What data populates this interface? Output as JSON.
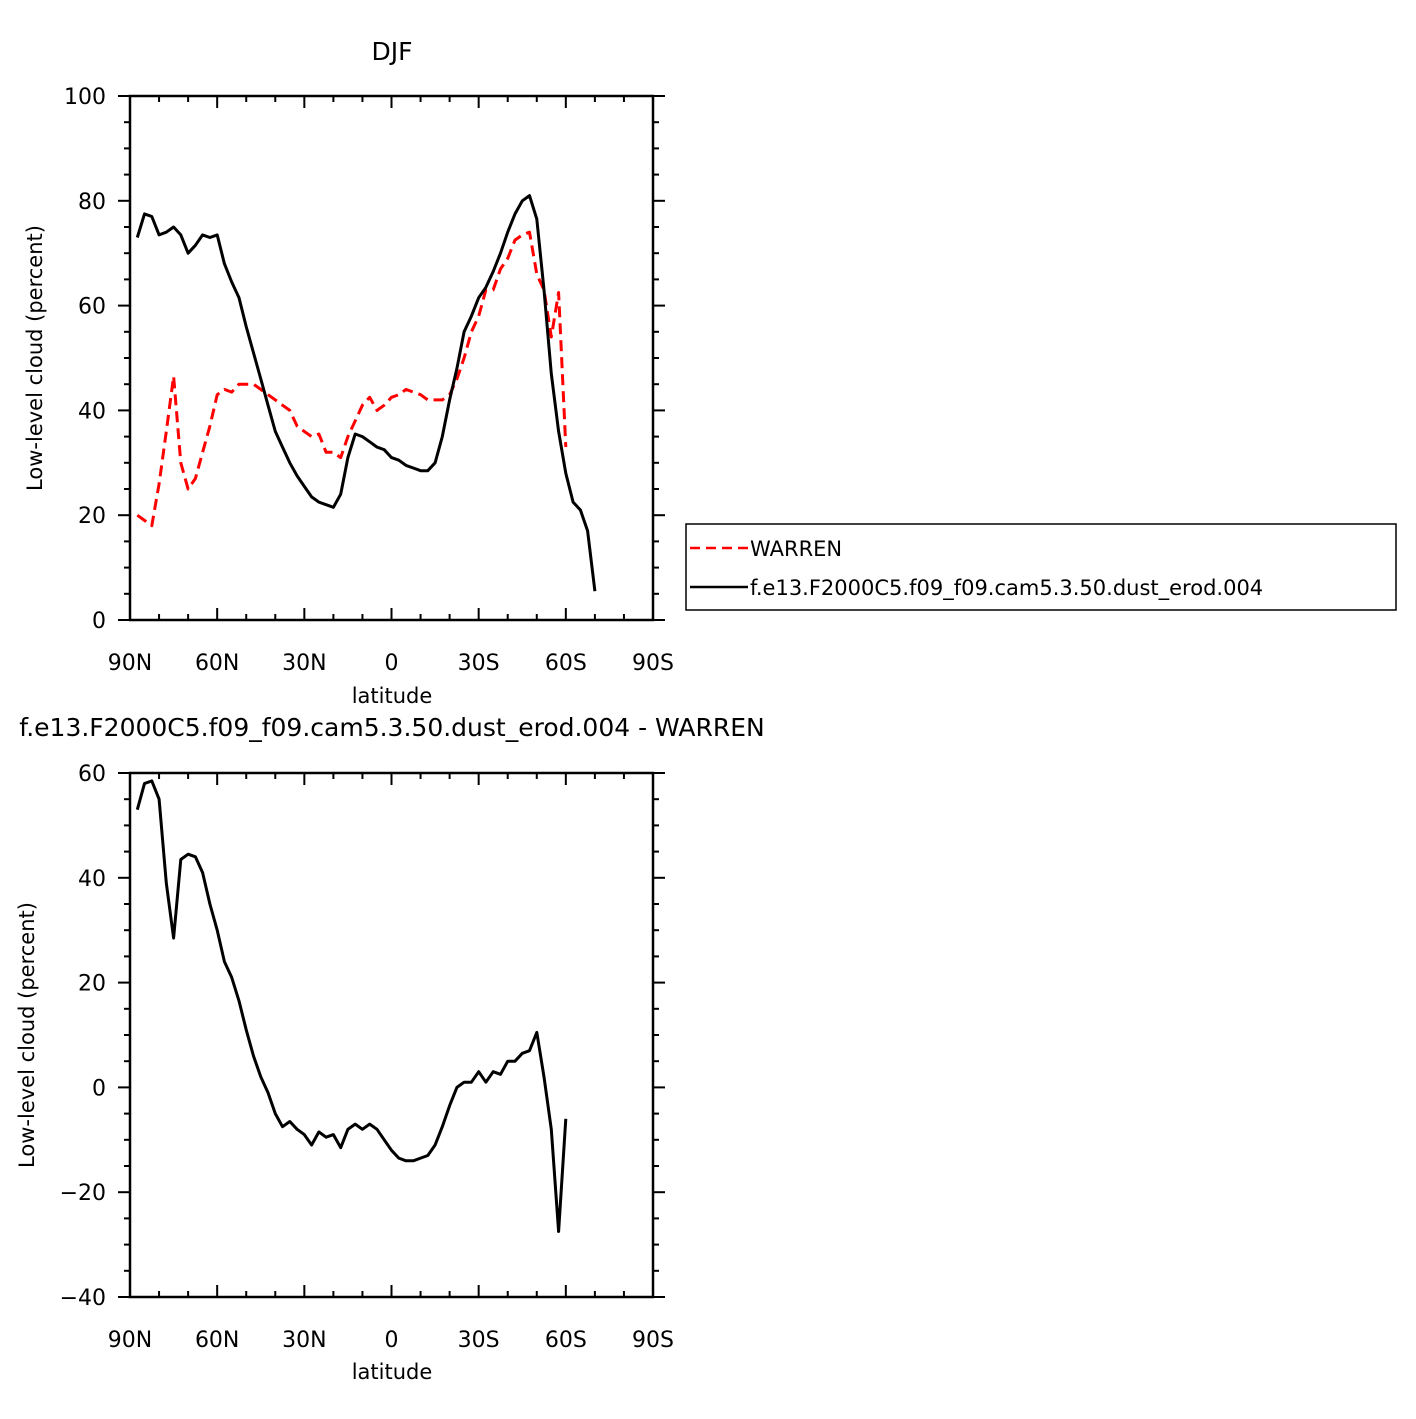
{
  "chart_data": [
    {
      "type": "line",
      "title": "DJF",
      "xlabel": "latitude",
      "ylabel": "Low-level cloud (percent)",
      "xlim": [
        90,
        -90
      ],
      "ylim": [
        0,
        100
      ],
      "x_ticks": [
        {
          "value": 90,
          "label": "90N"
        },
        {
          "value": 60,
          "label": "60N"
        },
        {
          "value": 30,
          "label": "30N"
        },
        {
          "value": 0,
          "label": "0"
        },
        {
          "value": -30,
          "label": "30S"
        },
        {
          "value": -60,
          "label": "60S"
        },
        {
          "value": -90,
          "label": "90S"
        }
      ],
      "y_ticks": [
        {
          "value": 0,
          "label": "0"
        },
        {
          "value": 20,
          "label": "20"
        },
        {
          "value": 40,
          "label": "40"
        },
        {
          "value": 60,
          "label": "60"
        },
        {
          "value": 80,
          "label": "80"
        },
        {
          "value": 100,
          "label": "100"
        }
      ],
      "legend": {
        "position": "right"
      },
      "series": [
        {
          "name": "WARREN",
          "color": "#ff0000",
          "dash": "dashed",
          "points": [
            [
              87.5,
              20.0
            ],
            [
              82.5,
              18.0
            ],
            [
              80.0,
              26.0
            ],
            [
              77.5,
              36.0
            ],
            [
              75.0,
              46.5
            ],
            [
              72.5,
              30.0
            ],
            [
              70.0,
              25.0
            ],
            [
              67.5,
              27.0
            ],
            [
              65.0,
              32.0
            ],
            [
              62.5,
              37.0
            ],
            [
              60.0,
              43.0
            ],
            [
              57.5,
              44.0
            ],
            [
              55.0,
              43.5
            ],
            [
              52.5,
              45.0
            ],
            [
              50.0,
              45.0
            ],
            [
              47.5,
              45.0
            ],
            [
              45.0,
              44.0
            ],
            [
              42.5,
              43.0
            ],
            [
              40.0,
              42.0
            ],
            [
              37.5,
              41.0
            ],
            [
              35.0,
              40.0
            ],
            [
              32.5,
              37.0
            ],
            [
              30.0,
              36.0
            ],
            [
              27.5,
              35.0
            ],
            [
              25.0,
              35.5
            ],
            [
              22.5,
              32.0
            ],
            [
              20.0,
              32.0
            ],
            [
              17.5,
              31.0
            ],
            [
              15.0,
              35.0
            ],
            [
              12.5,
              38.0
            ],
            [
              10.0,
              41.0
            ],
            [
              7.5,
              42.5
            ],
            [
              5.0,
              40.0
            ],
            [
              2.5,
              41.0
            ],
            [
              0.0,
              42.5
            ],
            [
              -2.5,
              43.0
            ],
            [
              -5.0,
              44.0
            ],
            [
              -7.5,
              43.5
            ],
            [
              -10.0,
              43.0
            ],
            [
              -12.5,
              42.0
            ],
            [
              -15.0,
              42.0
            ],
            [
              -17.5,
              42.0
            ],
            [
              -20.0,
              43.0
            ],
            [
              -22.5,
              46.0
            ],
            [
              -25.0,
              50.0
            ],
            [
              -27.5,
              55.0
            ],
            [
              -30.0,
              58.0
            ],
            [
              -32.5,
              63.0
            ],
            [
              -35.0,
              63.0
            ],
            [
              -37.5,
              67.0
            ],
            [
              -40.0,
              69.0
            ],
            [
              -42.5,
              72.5
            ],
            [
              -45.0,
              73.5
            ],
            [
              -47.5,
              74.0
            ],
            [
              -50.0,
              66.0
            ],
            [
              -52.5,
              63.0
            ],
            [
              -55.0,
              54.0
            ],
            [
              -57.5,
              62.5
            ],
            [
              -60.0,
              33.0
            ]
          ]
        },
        {
          "name": "f.e13.F2000C5.f09_f09.cam5.3.50.dust_erod.004",
          "color": "#000000",
          "dash": "solid",
          "points": [
            [
              87.5,
              73.0
            ],
            [
              85.0,
              77.5
            ],
            [
              82.5,
              77.0
            ],
            [
              80.0,
              73.5
            ],
            [
              77.5,
              74.0
            ],
            [
              75.0,
              75.0
            ],
            [
              72.5,
              73.5
            ],
            [
              70.0,
              70.0
            ],
            [
              67.5,
              71.5
            ],
            [
              65.0,
              73.5
            ],
            [
              62.5,
              73.0
            ],
            [
              60.0,
              73.5
            ],
            [
              57.5,
              68.0
            ],
            [
              55.0,
              64.5
            ],
            [
              52.5,
              61.5
            ],
            [
              50.0,
              56.0
            ],
            [
              47.5,
              51.0
            ],
            [
              45.0,
              46.0
            ],
            [
              42.5,
              41.0
            ],
            [
              40.0,
              36.0
            ],
            [
              37.5,
              33.0
            ],
            [
              35.0,
              30.0
            ],
            [
              32.5,
              27.5
            ],
            [
              30.0,
              25.5
            ],
            [
              27.5,
              23.5
            ],
            [
              25.0,
              22.5
            ],
            [
              22.5,
              22.0
            ],
            [
              20.0,
              21.5
            ],
            [
              17.5,
              24.0
            ],
            [
              15.0,
              31.0
            ],
            [
              12.5,
              35.5
            ],
            [
              10.0,
              35.0
            ],
            [
              7.5,
              34.0
            ],
            [
              5.0,
              33.0
            ],
            [
              2.5,
              32.5
            ],
            [
              0.0,
              31.0
            ],
            [
              -2.5,
              30.5
            ],
            [
              -5.0,
              29.5
            ],
            [
              -7.5,
              29.0
            ],
            [
              -10.0,
              28.5
            ],
            [
              -12.5,
              28.5
            ],
            [
              -15.0,
              30.0
            ],
            [
              -17.5,
              35.0
            ],
            [
              -20.0,
              42.0
            ],
            [
              -22.5,
              48.0
            ],
            [
              -25.0,
              55.0
            ],
            [
              -27.5,
              58.0
            ],
            [
              -30.0,
              61.5
            ],
            [
              -32.5,
              63.5
            ],
            [
              -35.0,
              66.5
            ],
            [
              -37.5,
              70.0
            ],
            [
              -40.0,
              74.0
            ],
            [
              -42.5,
              77.5
            ],
            [
              -45.0,
              80.0
            ],
            [
              -47.5,
              81.0
            ],
            [
              -50.0,
              76.5
            ],
            [
              -52.5,
              63.0
            ],
            [
              -55.0,
              47.0
            ],
            [
              -57.5,
              36.0
            ],
            [
              -60.0,
              28.0
            ],
            [
              -62.5,
              22.5
            ],
            [
              -65.0,
              21.0
            ],
            [
              -67.5,
              17.0
            ],
            [
              -70.0,
              5.5
            ]
          ]
        }
      ]
    },
    {
      "type": "line",
      "title": "f.e13.F2000C5.f09_f09.cam5.3.50.dust_erod.004 - WARREN",
      "xlabel": "latitude",
      "ylabel": "Low-level cloud (percent)",
      "xlim": [
        90,
        -90
      ],
      "ylim": [
        -40,
        60
      ],
      "x_ticks": [
        {
          "value": 90,
          "label": "90N"
        },
        {
          "value": 60,
          "label": "60N"
        },
        {
          "value": 30,
          "label": "30N"
        },
        {
          "value": 0,
          "label": "0"
        },
        {
          "value": -30,
          "label": "30S"
        },
        {
          "value": -60,
          "label": "60S"
        },
        {
          "value": -90,
          "label": "90S"
        }
      ],
      "y_ticks": [
        {
          "value": -40,
          "label": "−40"
        },
        {
          "value": -20,
          "label": "−20"
        },
        {
          "value": 0,
          "label": "0"
        },
        {
          "value": 20,
          "label": "20"
        },
        {
          "value": 40,
          "label": "40"
        },
        {
          "value": 60,
          "label": "60"
        }
      ],
      "series": [
        {
          "color": "#000000",
          "dash": "solid",
          "points": [
            [
              87.5,
              53.0
            ],
            [
              85.0,
              58.0
            ],
            [
              82.5,
              58.5
            ],
            [
              80.0,
              55.0
            ],
            [
              77.5,
              39.0
            ],
            [
              75.0,
              28.5
            ],
            [
              72.5,
              43.5
            ],
            [
              70.0,
              44.5
            ],
            [
              67.5,
              44.0
            ],
            [
              65.0,
              41.0
            ],
            [
              62.5,
              35.0
            ],
            [
              60.0,
              30.0
            ],
            [
              57.5,
              24.0
            ],
            [
              55.0,
              21.0
            ],
            [
              52.5,
              16.5
            ],
            [
              50.0,
              11.0
            ],
            [
              47.5,
              6.0
            ],
            [
              45.0,
              2.0
            ],
            [
              42.5,
              -1.0
            ],
            [
              40.0,
              -5.0
            ],
            [
              37.5,
              -7.5
            ],
            [
              35.0,
              -6.5
            ],
            [
              32.5,
              -8.0
            ],
            [
              30.0,
              -9.0
            ],
            [
              27.5,
              -11.0
            ],
            [
              25.0,
              -8.5
            ],
            [
              22.5,
              -9.5
            ],
            [
              20.0,
              -9.0
            ],
            [
              17.5,
              -11.5
            ],
            [
              15.0,
              -8.0
            ],
            [
              12.5,
              -7.0
            ],
            [
              10.0,
              -8.0
            ],
            [
              7.5,
              -7.0
            ],
            [
              5.0,
              -8.0
            ],
            [
              2.5,
              -10.0
            ],
            [
              0.0,
              -12.0
            ],
            [
              -2.5,
              -13.5
            ],
            [
              -5.0,
              -14.0
            ],
            [
              -7.5,
              -14.0
            ],
            [
              -10.0,
              -13.5
            ],
            [
              -12.5,
              -13.0
            ],
            [
              -15.0,
              -11.0
            ],
            [
              -17.5,
              -7.5
            ],
            [
              -20.0,
              -3.5
            ],
            [
              -22.5,
              0.0
            ],
            [
              -25.0,
              1.0
            ],
            [
              -27.5,
              1.0
            ],
            [
              -30.0,
              3.0
            ],
            [
              -32.5,
              1.0
            ],
            [
              -35.0,
              3.0
            ],
            [
              -37.5,
              2.5
            ],
            [
              -40.0,
              5.0
            ],
            [
              -42.5,
              5.0
            ],
            [
              -45.0,
              6.5
            ],
            [
              -47.5,
              7.0
            ],
            [
              -50.0,
              10.5
            ],
            [
              -52.5,
              2.0
            ],
            [
              -55.0,
              -8.0
            ],
            [
              -57.5,
              -27.5
            ],
            [
              -60.0,
              -6.0
            ]
          ]
        }
      ]
    }
  ]
}
